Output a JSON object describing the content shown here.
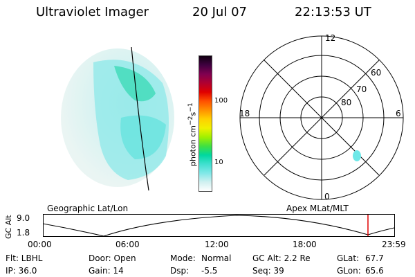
{
  "header": {
    "instrument": "Ultraviolet Imager",
    "date": "20 Jul 07",
    "time": "22:13:53 UT"
  },
  "colorbar": {
    "label": "photon cm",
    "label_sup1": "−2",
    "label_mid": "s",
    "label_sup2": "−1",
    "tick_100": "100",
    "tick_10": "10",
    "colors": [
      "#ffffff",
      "#d0f0f0",
      "#80e8e8",
      "#40e0d0",
      "#00d8a0",
      "#40e040",
      "#a0f000",
      "#f0f000",
      "#ffd000",
      "#ff9000",
      "#ff5000",
      "#e00000",
      "#b00030",
      "#800050",
      "#400040",
      "#100010"
    ]
  },
  "polar": {
    "label_12": "12",
    "label_18": "18",
    "label_6": "6",
    "label_0": "0",
    "label_60": "60",
    "label_70": "70",
    "label_80": "80"
  },
  "panel_labels": {
    "left": "Geographic Lat/Lon",
    "right": "Apex MLat/MLT"
  },
  "alt_plot": {
    "ylabel": "GC Alt",
    "ytick_top": "9.0",
    "ytick_bottom": "1.8",
    "xticks": [
      "00:00",
      "06:00",
      "12:00",
      "18:00",
      "23:59"
    ],
    "marker_color": "#e00000"
  },
  "footer": {
    "filter": "Flt: LBHL",
    "door": "Door: Open",
    "mode_label": "Mode:",
    "mode_value": "Normal",
    "gc_alt": "GC Alt: 2.2 Re",
    "glat_label": "GLat:",
    "glat_value": "67.7",
    "ip": "IP: 36.0",
    "gain": "Gain: 14",
    "dsp_label": "Dsp:",
    "dsp_value": "-5.5",
    "seq": "Seq: 39",
    "glon_label": "GLon:",
    "glon_value": "65.6"
  }
}
